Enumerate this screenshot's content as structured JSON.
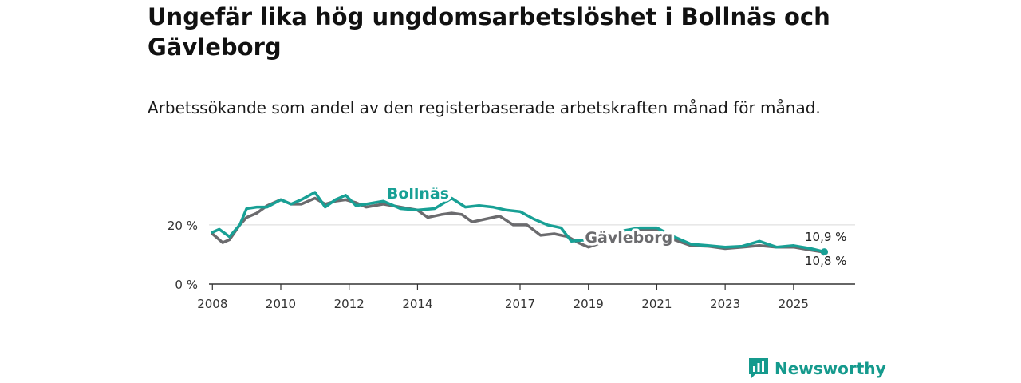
{
  "header": {
    "title": "Ungefär lika hög ungdomsarbetslöshet i Bollnäs och Gävleborg",
    "subtitle": "Arbetssökande som andel av den registerbaserade arbetskraften månad för månad."
  },
  "chart_data": {
    "type": "line",
    "title": "Ungefär lika hög ungdomsarbetslöshet i Bollnäs och Gävleborg",
    "subtitle": "Arbetssökande som andel av den registerbaserade arbetskraften månad för månad.",
    "xlabel": "",
    "ylabel": "",
    "xlim": [
      2007.9,
      2026.8
    ],
    "ylim": [
      0,
      34
    ],
    "x_ticks": [
      2008,
      2010,
      2012,
      2014,
      2017,
      2019,
      2021,
      2023,
      2025
    ],
    "x_tick_labels": [
      "2008",
      "2010",
      "2012",
      "2014",
      "2017",
      "2019",
      "2021",
      "2023",
      "2025"
    ],
    "y_ticks": [
      0,
      20
    ],
    "y_tick_labels": [
      "0 %",
      "20 %"
    ],
    "grid": true,
    "series": [
      {
        "name": "Gävleborg",
        "label": "Gävleborg",
        "color": "#6b6b6e",
        "end_label": "10,8 %",
        "x": [
          2008.0,
          2008.3,
          2008.5,
          2008.8,
          2009.0,
          2009.3,
          2009.6,
          2010.0,
          2010.3,
          2010.6,
          2011.0,
          2011.3,
          2011.6,
          2011.9,
          2012.2,
          2012.5,
          2013.0,
          2013.5,
          2014.0,
          2014.3,
          2014.7,
          2015.0,
          2015.3,
          2015.6,
          2016.0,
          2016.4,
          2016.8,
          2017.2,
          2017.6,
          2018.0,
          2018.4,
          2018.7,
          2019.0,
          2019.5,
          2020.0,
          2020.5,
          2021.0,
          2021.5,
          2022.0,
          2022.5,
          2023.0,
          2023.5,
          2024.0,
          2024.5,
          2025.0,
          2025.5,
          2025.9
        ],
        "values": [
          17.0,
          14.0,
          15.0,
          20.0,
          22.5,
          24.0,
          26.5,
          28.5,
          27.0,
          27.0,
          29.0,
          27.0,
          28.0,
          28.5,
          27.5,
          26.0,
          27.0,
          26.0,
          25.0,
          22.5,
          23.5,
          24.0,
          23.5,
          21.0,
          22.0,
          23.0,
          20.0,
          20.0,
          16.5,
          17.0,
          16.0,
          14.0,
          12.5,
          14.5,
          18.0,
          18.5,
          18.5,
          15.0,
          13.0,
          12.8,
          12.0,
          12.5,
          13.0,
          12.5,
          12.5,
          11.5,
          10.8
        ]
      },
      {
        "name": "Bollnäs",
        "label": "Bollnäs",
        "color": "#18a095",
        "end_label": "10,9 %",
        "x": [
          2008.0,
          2008.2,
          2008.5,
          2008.8,
          2009.0,
          2009.3,
          2009.6,
          2010.0,
          2010.3,
          2010.6,
          2011.0,
          2011.3,
          2011.6,
          2011.9,
          2012.2,
          2012.5,
          2013.0,
          2013.5,
          2014.0,
          2014.5,
          2015.0,
          2015.4,
          2015.8,
          2016.2,
          2016.6,
          2017.0,
          2017.4,
          2017.8,
          2018.2,
          2018.5,
          2019.0,
          2019.5,
          2020.0,
          2020.5,
          2021.0,
          2021.5,
          2022.0,
          2022.5,
          2023.0,
          2023.5,
          2024.0,
          2024.5,
          2025.0,
          2025.5,
          2025.9
        ],
        "values": [
          17.5,
          18.5,
          16.0,
          20.0,
          25.5,
          26.0,
          26.0,
          28.5,
          27.0,
          28.5,
          31.0,
          26.0,
          28.5,
          30.0,
          26.5,
          27.0,
          28.0,
          25.5,
          25.0,
          25.5,
          29.0,
          26.0,
          26.5,
          26.0,
          25.0,
          24.5,
          22.0,
          20.0,
          19.0,
          14.5,
          15.0,
          16.5,
          18.0,
          19.0,
          19.0,
          16.0,
          13.5,
          13.0,
          12.5,
          12.8,
          14.5,
          12.5,
          13.0,
          12.0,
          10.9
        ]
      }
    ],
    "annotations": [
      "Bollnäs",
      "Gävleborg",
      "10,9 %",
      "10,8 %"
    ]
  },
  "footer": {
    "brand": "Newsworthy",
    "brand_color": "#159a8d"
  }
}
